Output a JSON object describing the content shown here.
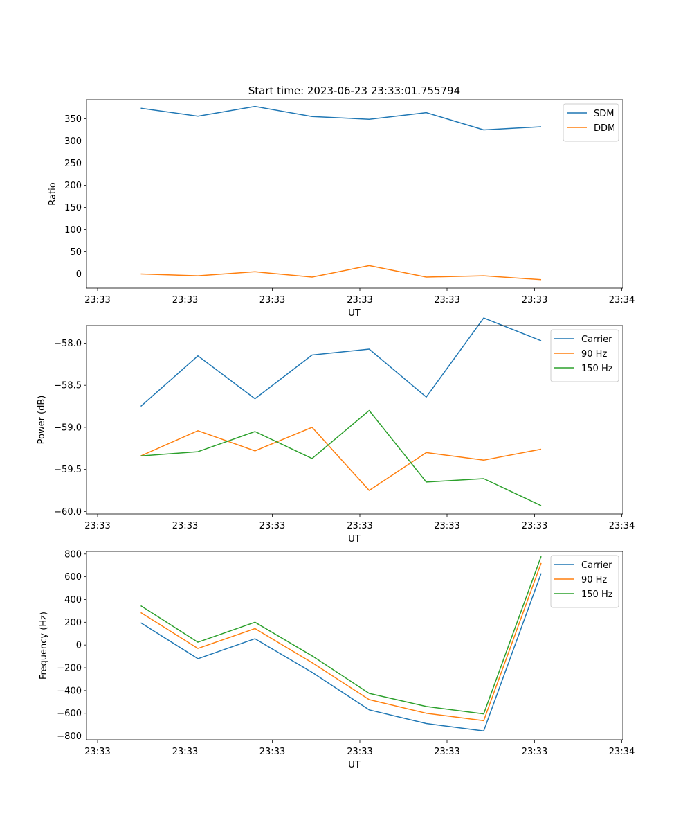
{
  "figure": {
    "title": "Start time: 2023-06-23 23:33:01.755794"
  },
  "chart_data": [
    {
      "type": "line",
      "title": "Start time: 2023-06-23 23:33:01.755794",
      "xlabel": "UT",
      "ylabel": "Ratio",
      "x_tick_labels": [
        "23:33",
        "23:33",
        "23:33",
        "23:33",
        "23:33",
        "23:33",
        "23:34"
      ],
      "y_ticks": [
        0,
        50,
        100,
        150,
        200,
        250,
        300,
        350
      ],
      "ylim": [
        -32,
        393
      ],
      "legend": "top-right",
      "grid": false,
      "series": [
        {
          "name": "SDM",
          "color": "#1f77b4",
          "values": [
            374,
            356,
            378,
            355,
            349,
            364,
            325,
            332
          ]
        },
        {
          "name": "DDM",
          "color": "#ff7f0e",
          "values": [
            0,
            -4,
            5,
            -7,
            19,
            -7,
            -4,
            -13
          ]
        }
      ]
    },
    {
      "type": "line",
      "xlabel": "UT",
      "ylabel": "Power (dB)",
      "x_tick_labels": [
        "23:33",
        "23:33",
        "23:33",
        "23:33",
        "23:33",
        "23:33",
        "23:34"
      ],
      "y_ticks": [
        -60.0,
        -59.5,
        -59.0,
        -58.5,
        -58.0
      ],
      "y_tick_labels": [
        "−60.0",
        "−59.5",
        "−59.0",
        "−58.5",
        "−58.0"
      ],
      "ylim": [
        -60.03,
        -57.79
      ],
      "legend": "top-right",
      "grid": false,
      "series": [
        {
          "name": "Carrier",
          "color": "#1f77b4",
          "values": [
            -58.75,
            -58.15,
            -58.66,
            -58.14,
            -58.07,
            -58.64,
            -57.7,
            -57.97
          ]
        },
        {
          "name": "90 Hz",
          "color": "#ff7f0e",
          "values": [
            -59.34,
            -59.04,
            -59.28,
            -59.0,
            -59.75,
            -59.3,
            -59.39,
            -59.26
          ]
        },
        {
          "name": "150 Hz",
          "color": "#2ca02c",
          "values": [
            -59.34,
            -59.29,
            -59.05,
            -59.37,
            -58.8,
            -59.65,
            -59.61,
            -59.93
          ]
        }
      ]
    },
    {
      "type": "line",
      "xlabel": "UT",
      "ylabel": "Frequency (Hz)",
      "x_tick_labels": [
        "23:33",
        "23:33",
        "23:33",
        "23:33",
        "23:33",
        "23:33",
        "23:34"
      ],
      "y_ticks": [
        -800,
        -600,
        -400,
        -200,
        0,
        200,
        400,
        600,
        800
      ],
      "y_tick_labels": [
        "−800",
        "−600",
        "−400",
        "−200",
        "0",
        "200",
        "400",
        "600",
        "800"
      ],
      "ylim": [
        -833,
        823
      ],
      "legend": "top-right",
      "grid": false,
      "series": [
        {
          "name": "Carrier",
          "color": "#1f77b4",
          "values": [
            195,
            -120,
            55,
            -240,
            -570,
            -690,
            -755,
            630
          ]
        },
        {
          "name": "90 Hz",
          "color": "#ff7f0e",
          "values": [
            285,
            -30,
            145,
            -155,
            -480,
            -600,
            -665,
            720
          ]
        },
        {
          "name": "150 Hz",
          "color": "#2ca02c",
          "values": [
            345,
            25,
            200,
            -95,
            -425,
            -540,
            -605,
            780
          ]
        }
      ]
    }
  ]
}
